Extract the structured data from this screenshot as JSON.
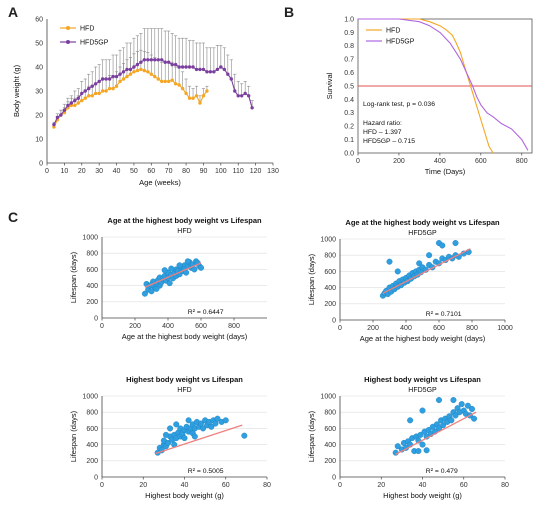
{
  "panels": {
    "a": "A",
    "b": "B",
    "c": "C"
  },
  "colors": {
    "hfd": "#f5a623",
    "hfd5gp": "#7b3fa0",
    "survival_hfd5gp": "#b066e0",
    "scatter": "#2f9fe0",
    "trend": "#f08080",
    "ref": "#e05050"
  },
  "chart_data": [
    {
      "id": "panel-a",
      "type": "line",
      "xlabel": "Age (weeks)",
      "ylabel": "Body weight (g)",
      "xlim": [
        0,
        130
      ],
      "ylim": [
        0,
        60
      ],
      "xticks": [
        0,
        10,
        20,
        30,
        40,
        50,
        60,
        70,
        80,
        90,
        100,
        110,
        120,
        130
      ],
      "yticks": [
        0,
        10,
        20,
        30,
        40,
        50,
        60
      ],
      "legend": "top-left",
      "series": [
        {
          "name": "HFD",
          "x": [
            4,
            6,
            8,
            10,
            12,
            14,
            16,
            18,
            20,
            22,
            24,
            26,
            28,
            30,
            32,
            34,
            36,
            38,
            40,
            42,
            44,
            46,
            48,
            50,
            52,
            54,
            56,
            58,
            60,
            62,
            64,
            66,
            68,
            70,
            72,
            74,
            76,
            78,
            80,
            82,
            84,
            86,
            88,
            90,
            92
          ],
          "y": [
            15,
            18,
            20,
            21,
            23,
            24,
            24,
            25,
            26,
            27,
            28,
            28,
            29,
            29,
            30,
            30,
            31,
            31,
            32,
            34,
            35,
            36,
            37,
            38,
            38.5,
            39,
            38.5,
            38,
            37,
            36,
            35,
            34,
            34,
            34,
            34.5,
            33,
            32.5,
            31,
            29,
            27,
            27,
            28,
            25,
            28,
            30
          ],
          "err": [
            1,
            1.5,
            2,
            2,
            2.5,
            3,
            3,
            3,
            3,
            3.5,
            4,
            4,
            4,
            4.5,
            5,
            5,
            5.5,
            5.5,
            6,
            6,
            6.5,
            7,
            7,
            7.5,
            8,
            8,
            8,
            8,
            8,
            8,
            8,
            8,
            8,
            8,
            7.5,
            7,
            7,
            7,
            6,
            5,
            4,
            4,
            3,
            3,
            2
          ]
        },
        {
          "name": "HFD5GP",
          "x": [
            4,
            6,
            8,
            10,
            12,
            14,
            16,
            18,
            20,
            22,
            24,
            26,
            28,
            30,
            32,
            34,
            36,
            38,
            40,
            42,
            44,
            46,
            48,
            50,
            52,
            54,
            56,
            58,
            60,
            62,
            64,
            66,
            68,
            70,
            72,
            74,
            76,
            78,
            80,
            82,
            84,
            86,
            88,
            90,
            92,
            94,
            96,
            98,
            100,
            102,
            104,
            106,
            108,
            110,
            112,
            114,
            116,
            118
          ],
          "y": [
            16,
            19,
            20,
            22,
            24,
            25,
            26,
            27,
            29,
            30,
            31,
            32,
            33,
            34,
            35,
            35,
            35,
            36,
            36,
            37,
            38,
            39,
            39,
            40,
            41,
            42,
            43,
            43,
            43,
            43,
            43,
            43,
            42,
            42,
            41,
            41,
            40,
            40,
            40,
            40,
            40,
            39,
            39,
            39,
            38,
            38,
            38,
            39,
            40,
            39,
            37,
            35,
            30,
            28,
            28,
            29,
            28,
            23
          ],
          "err": [
            1,
            1.5,
            2,
            2.5,
            3,
            3,
            4,
            4,
            5,
            5,
            6,
            6,
            7,
            7,
            8,
            8,
            8,
            9,
            9,
            10,
            10,
            11,
            11,
            12,
            12,
            12,
            13,
            13,
            13,
            13,
            13,
            13,
            13,
            13,
            13,
            12,
            12,
            12,
            12,
            11,
            11,
            11,
            11,
            11,
            10,
            10,
            10,
            10,
            9,
            9,
            8,
            8,
            7,
            6,
            5,
            5,
            4,
            3
          ]
        }
      ]
    },
    {
      "id": "panel-b",
      "type": "line",
      "xlabel": "Time (Days)",
      "ylabel": "Survival",
      "xlim": [
        0,
        850
      ],
      "ylim": [
        0,
        1.0
      ],
      "xticks": [
        0,
        200,
        400,
        600,
        800
      ],
      "yticks": [
        0.0,
        0.1,
        0.2,
        0.3,
        0.4,
        0.5,
        0.6,
        0.7,
        0.8,
        0.9,
        1.0
      ],
      "legend": "top-left",
      "reference_line": 0.5,
      "annotations": [
        "Log-rank test, p = 0.036",
        "Hazard ratio:",
        "HFD – 1.397",
        "HFD5GP – 0.715"
      ],
      "series": [
        {
          "name": "HFD",
          "x": [
            0,
            300,
            350,
            400,
            430,
            460,
            480,
            500,
            520,
            540,
            560,
            580,
            600,
            620,
            640,
            660
          ],
          "y": [
            1.0,
            1.0,
            0.98,
            0.95,
            0.92,
            0.88,
            0.82,
            0.75,
            0.65,
            0.55,
            0.45,
            0.35,
            0.25,
            0.15,
            0.05,
            0.0
          ]
        },
        {
          "name": "HFD5GP",
          "x": [
            0,
            200,
            300,
            350,
            400,
            450,
            500,
            530,
            560,
            580,
            600,
            630,
            660,
            700,
            750,
            800,
            830
          ],
          "y": [
            1.0,
            1.0,
            0.98,
            0.95,
            0.9,
            0.82,
            0.7,
            0.6,
            0.5,
            0.42,
            0.36,
            0.3,
            0.27,
            0.22,
            0.18,
            0.1,
            0.02
          ]
        }
      ]
    },
    {
      "id": "panel-c1",
      "type": "scatter",
      "title": "Age at the highest body weight vs Lifespan",
      "subtitle": "HFD",
      "xlabel": "Age at the highest body weight (days)",
      "ylabel": "Lifespan (days)",
      "xlim": [
        0,
        1000
      ],
      "ylim": [
        0,
        1000
      ],
      "xticks": [
        0,
        200,
        400,
        600,
        800
      ],
      "yticks": [
        0,
        200,
        400,
        600,
        800,
        1000
      ],
      "r2": "R² = 0.6447",
      "trend": [
        [
          260,
          380
        ],
        [
          600,
          680
        ]
      ],
      "points": [
        [
          260,
          300
        ],
        [
          270,
          420
        ],
        [
          280,
          350
        ],
        [
          290,
          400
        ],
        [
          300,
          330
        ],
        [
          310,
          450
        ],
        [
          320,
          380
        ],
        [
          330,
          420
        ],
        [
          340,
          470
        ],
        [
          350,
          400
        ],
        [
          350,
          500
        ],
        [
          360,
          440
        ],
        [
          370,
          480
        ],
        [
          380,
          520
        ],
        [
          390,
          460
        ],
        [
          400,
          500
        ],
        [
          400,
          560
        ],
        [
          410,
          430
        ],
        [
          420,
          530
        ],
        [
          430,
          490
        ],
        [
          440,
          560
        ],
        [
          450,
          600
        ],
        [
          450,
          520
        ],
        [
          460,
          580
        ],
        [
          470,
          540
        ],
        [
          480,
          620
        ],
        [
          490,
          580
        ],
        [
          500,
          650
        ],
        [
          500,
          600
        ],
        [
          510,
          560
        ],
        [
          520,
          640
        ],
        [
          530,
          690
        ],
        [
          540,
          620
        ],
        [
          550,
          660
        ],
        [
          560,
          600
        ],
        [
          570,
          700
        ],
        [
          580,
          680
        ],
        [
          590,
          640
        ],
        [
          600,
          620
        ],
        [
          420,
          610
        ],
        [
          380,
          590
        ],
        [
          470,
          650
        ],
        [
          520,
          700
        ],
        [
          300,
          410
        ],
        [
          330,
          360
        ]
      ]
    },
    {
      "id": "panel-c2",
      "type": "scatter",
      "title": "Age at the highest body weight vs Lifespan",
      "subtitle": "HFD5GP",
      "xlabel": "Age at the highest body weight (days)",
      "ylabel": "Lifespan (days)",
      "xlim": [
        0,
        1000
      ],
      "ylim": [
        0,
        1000
      ],
      "xticks": [
        0,
        200,
        400,
        600,
        800,
        1000
      ],
      "yticks": [
        0,
        200,
        400,
        600,
        800,
        1000
      ],
      "r2": "R² = 0.7101",
      "trend": [
        [
          260,
          330
        ],
        [
          790,
          880
        ]
      ],
      "points": [
        [
          260,
          300
        ],
        [
          270,
          330
        ],
        [
          280,
          360
        ],
        [
          290,
          320
        ],
        [
          300,
          400
        ],
        [
          310,
          350
        ],
        [
          320,
          420
        ],
        [
          330,
          380
        ],
        [
          340,
          450
        ],
        [
          350,
          410
        ],
        [
          360,
          480
        ],
        [
          370,
          430
        ],
        [
          380,
          500
        ],
        [
          390,
          460
        ],
        [
          400,
          520
        ],
        [
          410,
          480
        ],
        [
          420,
          550
        ],
        [
          430,
          510
        ],
        [
          440,
          580
        ],
        [
          450,
          540
        ],
        [
          460,
          600
        ],
        [
          470,
          560
        ],
        [
          480,
          620
        ],
        [
          490,
          590
        ],
        [
          500,
          650
        ],
        [
          520,
          620
        ],
        [
          540,
          680
        ],
        [
          560,
          650
        ],
        [
          580,
          720
        ],
        [
          600,
          700
        ],
        [
          620,
          760
        ],
        [
          640,
          740
        ],
        [
          660,
          780
        ],
        [
          680,
          760
        ],
        [
          700,
          800
        ],
        [
          720,
          780
        ],
        [
          750,
          820
        ],
        [
          780,
          840
        ],
        [
          600,
          950
        ],
        [
          620,
          920
        ],
        [
          300,
          720
        ],
        [
          350,
          600
        ],
        [
          480,
          700
        ],
        [
          540,
          800
        ],
        [
          700,
          950
        ]
      ]
    },
    {
      "id": "panel-c3",
      "type": "scatter",
      "title": "Highest body weight vs Lifespan",
      "subtitle": "HFD",
      "xlabel": "Highest body weight (g)",
      "ylabel": "Lifespan (days)",
      "xlim": [
        0,
        80
      ],
      "ylim": [
        0,
        1000
      ],
      "xticks": [
        0,
        20,
        40,
        60,
        80
      ],
      "yticks": [
        0,
        200,
        400,
        600,
        800,
        1000
      ],
      "r2": "R² = 0.5005",
      "trend": [
        [
          26,
          290
        ],
        [
          68,
          640
        ]
      ],
      "points": [
        [
          27,
          300
        ],
        [
          28,
          360
        ],
        [
          29,
          330
        ],
        [
          30,
          400
        ],
        [
          30,
          450
        ],
        [
          31,
          380
        ],
        [
          32,
          420
        ],
        [
          33,
          500
        ],
        [
          34,
          460
        ],
        [
          35,
          520
        ],
        [
          35,
          400
        ],
        [
          36,
          480
        ],
        [
          37,
          550
        ],
        [
          38,
          500
        ],
        [
          38,
          600
        ],
        [
          39,
          530
        ],
        [
          40,
          580
        ],
        [
          40,
          480
        ],
        [
          41,
          620
        ],
        [
          42,
          560
        ],
        [
          43,
          600
        ],
        [
          44,
          650
        ],
        [
          44,
          540
        ],
        [
          45,
          600
        ],
        [
          46,
          680
        ],
        [
          47,
          620
        ],
        [
          48,
          660
        ],
        [
          49,
          600
        ],
        [
          50,
          700
        ],
        [
          51,
          640
        ],
        [
          52,
          680
        ],
        [
          53,
          620
        ],
        [
          54,
          700
        ],
        [
          55,
          660
        ],
        [
          56,
          720
        ],
        [
          58,
          680
        ],
        [
          60,
          700
        ],
        [
          69,
          510
        ],
        [
          33,
          600
        ],
        [
          36,
          650
        ],
        [
          42,
          700
        ],
        [
          45,
          500
        ],
        [
          31,
          520
        ]
      ]
    },
    {
      "id": "panel-c4",
      "type": "scatter",
      "title": "Highest body weight vs Lifespan",
      "subtitle": "HFD5GP",
      "xlabel": "Highest body weight (g)",
      "ylabel": "Lifespan (days)",
      "xlim": [
        0,
        80
      ],
      "ylim": [
        0,
        1000
      ],
      "xticks": [
        0,
        20,
        40,
        60,
        80
      ],
      "yticks": [
        0,
        200,
        400,
        600,
        800,
        1000
      ],
      "r2": "R² = 0.479",
      "trend": [
        [
          27,
          280
        ],
        [
          66,
          800
        ]
      ],
      "points": [
        [
          27,
          300
        ],
        [
          28,
          380
        ],
        [
          30,
          340
        ],
        [
          31,
          420
        ],
        [
          32,
          360
        ],
        [
          33,
          440
        ],
        [
          34,
          400
        ],
        [
          35,
          480
        ],
        [
          36,
          320
        ],
        [
          37,
          500
        ],
        [
          38,
          450
        ],
        [
          39,
          520
        ],
        [
          40,
          400
        ],
        [
          41,
          560
        ],
        [
          42,
          500
        ],
        [
          43,
          580
        ],
        [
          44,
          530
        ],
        [
          45,
          620
        ],
        [
          46,
          560
        ],
        [
          47,
          650
        ],
        [
          48,
          600
        ],
        [
          49,
          700
        ],
        [
          50,
          640
        ],
        [
          51,
          720
        ],
        [
          52,
          680
        ],
        [
          53,
          750
        ],
        [
          54,
          700
        ],
        [
          55,
          800
        ],
        [
          56,
          760
        ],
        [
          57,
          850
        ],
        [
          58,
          800
        ],
        [
          59,
          900
        ],
        [
          60,
          820
        ],
        [
          61,
          780
        ],
        [
          62,
          880
        ],
        [
          63,
          760
        ],
        [
          64,
          840
        ],
        [
          65,
          720
        ],
        [
          34,
          700
        ],
        [
          40,
          820
        ],
        [
          48,
          950
        ],
        [
          55,
          950
        ],
        [
          38,
          320
        ],
        [
          42,
          330
        ]
      ]
    }
  ]
}
